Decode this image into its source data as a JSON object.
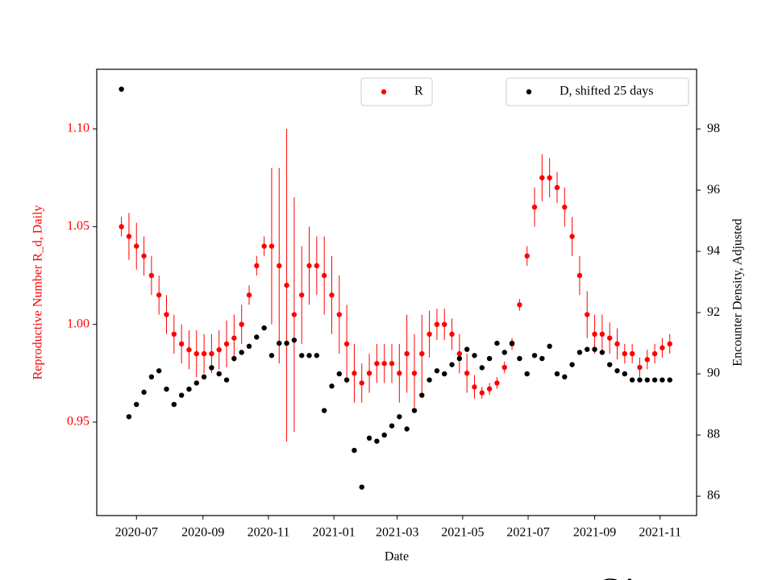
{
  "chart_data": {
    "type": "scatter",
    "xlabel": "Date",
    "ylabel": "Reproductive Number R_d, Daily",
    "y2label": "Encounter Density, Adjusted",
    "annotation": "CA",
    "xlim": [
      "2020-05-25",
      "2021-12-05"
    ],
    "xticks": [
      {
        "value": "2020-07-01",
        "label": "2020-07"
      },
      {
        "value": "2020-09-01",
        "label": "2020-09"
      },
      {
        "value": "2020-11-01",
        "label": "2020-11"
      },
      {
        "value": "2021-01-01",
        "label": "2021-01"
      },
      {
        "value": "2021-03-01",
        "label": "2021-03"
      },
      {
        "value": "2021-05-01",
        "label": "2021-05"
      },
      {
        "value": "2021-07-01",
        "label": "2021-07"
      },
      {
        "value": "2021-09-01",
        "label": "2021-09"
      },
      {
        "value": "2021-11-01",
        "label": "2021-11"
      }
    ],
    "ylim": [
      0.9022,
      1.1305
    ],
    "yticks": [
      {
        "value": 0.95,
        "label": "0.95"
      },
      {
        "value": 1.0,
        "label": "1.00"
      },
      {
        "value": 1.05,
        "label": "1.05"
      },
      {
        "value": 1.1,
        "label": "1.10"
      }
    ],
    "y2lim": [
      85.37,
      99.95
    ],
    "y2ticks": [
      86,
      88,
      90,
      92,
      94,
      96,
      98
    ],
    "ylabel_color": "#ff0000",
    "legend_loc": [
      "upper center",
      "upper right"
    ],
    "x": [
      "2020-06-17",
      "2020-06-24",
      "2020-07-01",
      "2020-07-08",
      "2020-07-15",
      "2020-07-22",
      "2020-07-29",
      "2020-08-05",
      "2020-08-12",
      "2020-08-19",
      "2020-08-26",
      "2020-09-02",
      "2020-09-09",
      "2020-09-16",
      "2020-09-23",
      "2020-09-30",
      "2020-10-07",
      "2020-10-14",
      "2020-10-21",
      "2020-10-28",
      "2020-11-04",
      "2020-11-11",
      "2020-11-18",
      "2020-11-25",
      "2020-12-02",
      "2020-12-09",
      "2020-12-16",
      "2020-12-23",
      "2020-12-30",
      "2021-01-06",
      "2021-01-13",
      "2021-01-20",
      "2021-01-27",
      "2021-02-03",
      "2021-02-10",
      "2021-02-17",
      "2021-02-24",
      "2021-03-03",
      "2021-03-10",
      "2021-03-17",
      "2021-03-24",
      "2021-03-31",
      "2021-04-07",
      "2021-04-14",
      "2021-04-21",
      "2021-04-28",
      "2021-05-05",
      "2021-05-12",
      "2021-05-19",
      "2021-05-26",
      "2021-06-02",
      "2021-06-09",
      "2021-06-16",
      "2021-06-23",
      "2021-06-30",
      "2021-07-07",
      "2021-07-14",
      "2021-07-21",
      "2021-07-28",
      "2021-08-04",
      "2021-08-11",
      "2021-08-18",
      "2021-08-25",
      "2021-09-01",
      "2021-09-08",
      "2021-09-15",
      "2021-09-22",
      "2021-09-29",
      "2021-10-06",
      "2021-10-13",
      "2021-10-20",
      "2021-10-27",
      "2021-11-03",
      "2021-11-10"
    ],
    "series": [
      {
        "name": "R",
        "color": "#ff0000",
        "axis": "y",
        "values": [
          1.05,
          1.045,
          1.04,
          1.035,
          1.025,
          1.015,
          1.005,
          0.995,
          0.99,
          0.987,
          0.985,
          0.985,
          0.985,
          0.987,
          0.99,
          0.993,
          1.0,
          1.015,
          1.03,
          1.04,
          1.04,
          1.03,
          1.02,
          1.005,
          1.015,
          1.03,
          1.03,
          1.025,
          1.015,
          1.005,
          0.99,
          0.975,
          0.97,
          0.975,
          0.98,
          0.98,
          0.98,
          0.975,
          0.985,
          0.975,
          0.985,
          0.995,
          1.0,
          1.0,
          0.995,
          0.985,
          0.975,
          0.968,
          0.965,
          0.967,
          0.97,
          0.978,
          0.99,
          1.01,
          1.035,
          1.06,
          1.075,
          1.075,
          1.07,
          1.06,
          1.045,
          1.025,
          1.005,
          0.995,
          0.995,
          0.993,
          0.99,
          0.985,
          0.985,
          0.978,
          0.982,
          0.985,
          0.988,
          0.99
        ],
        "errors": [
          0.005,
          0.012,
          0.012,
          0.01,
          0.01,
          0.01,
          0.01,
          0.01,
          0.01,
          0.01,
          0.012,
          0.01,
          0.01,
          0.01,
          0.012,
          0.012,
          0.01,
          0.005,
          0.005,
          0.005,
          0.04,
          0.05,
          0.08,
          0.06,
          0.025,
          0.02,
          0.015,
          0.02,
          0.02,
          0.02,
          0.02,
          0.015,
          0.01,
          0.01,
          0.01,
          0.01,
          0.01,
          0.015,
          0.02,
          0.02,
          0.02,
          0.012,
          0.008,
          0.008,
          0.008,
          0.01,
          0.01,
          0.006,
          0.003,
          0.003,
          0.003,
          0.003,
          0.003,
          0.003,
          0.005,
          0.01,
          0.012,
          0.01,
          0.008,
          0.01,
          0.01,
          0.01,
          0.012,
          0.01,
          0.01,
          0.008,
          0.008,
          0.005,
          0.005,
          0.005,
          0.005,
          0.005,
          0.005,
          0.005
        ]
      },
      {
        "name": "D, shifted 25 days",
        "color": "#000000",
        "axis": "y2",
        "values": [
          99.3,
          88.6,
          89.0,
          89.4,
          89.9,
          90.1,
          89.5,
          89.0,
          89.3,
          89.5,
          89.7,
          89.9,
          90.2,
          90.0,
          89.8,
          90.5,
          90.7,
          90.9,
          91.2,
          91.5,
          90.6,
          91.0,
          91.0,
          91.1,
          90.6,
          90.6,
          90.6,
          88.8,
          89.6,
          90.0,
          89.8,
          87.5,
          86.3,
          87.9,
          87.8,
          88.0,
          88.3,
          88.6,
          88.2,
          88.8,
          89.3,
          89.8,
          90.1,
          90.0,
          90.3,
          90.5,
          90.8,
          90.6,
          90.2,
          90.5,
          91.0,
          90.7,
          91.0,
          90.5,
          90.0,
          90.6,
          90.5,
          90.9,
          90.0,
          89.9,
          90.3,
          90.7,
          90.8,
          90.8,
          90.7,
          90.3,
          90.1,
          90.0,
          89.8,
          89.8,
          89.8,
          89.8,
          89.8,
          89.8
        ]
      }
    ]
  }
}
